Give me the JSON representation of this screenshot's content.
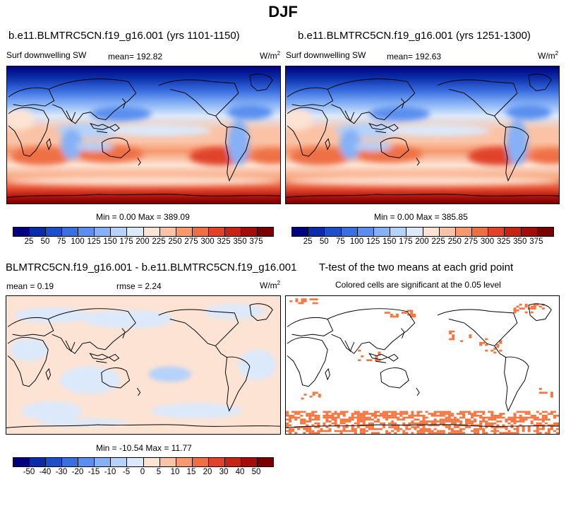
{
  "suptitle": "DJF",
  "panel_a": {
    "title": "b.e11.BLMTRC5CN.f19_g16.001 (yrs 1101-1150)",
    "left_label": "Surf downwelling SW",
    "mean_label": "mean= 192.82",
    "unit_base": "W/m",
    "unit_sup": "2",
    "minmax": "Min =   0.00 Max = 389.09"
  },
  "panel_b": {
    "title": "b.e11.BLMTRC5CN.f19_g16.001 (yrs 1251-1300)",
    "left_label": "Surf downwelling SW",
    "mean_label": "mean= 192.63",
    "unit_base": "W/m",
    "unit_sup": "2",
    "minmax": "Min =   0.00 Max = 385.85"
  },
  "panel_c": {
    "title": "BLMTRC5CN.f19_g16.001 - b.e11.BLMTRC5CN.f19_g16.001",
    "mean_label": "mean =   0.19",
    "rmse_label": "rmse =   2.24",
    "unit_base": "W/m",
    "unit_sup": "2",
    "minmax": "Min = -10.54 Max =  11.77"
  },
  "panel_d": {
    "title": "T-test of the two means at each grid point",
    "subtitle": "Colored cells are significant at the 0.05 level"
  },
  "colorbar_main": {
    "colors": [
      "#00007f",
      "#0b2ca8",
      "#1f4fc8",
      "#3a6fe0",
      "#5a8ff0",
      "#86b1f6",
      "#b4d2fa",
      "#dbe9fb",
      "#fde3d3",
      "#fbc3a6",
      "#f6996f",
      "#ef6f45",
      "#e0432a",
      "#c62415",
      "#a20d0b",
      "#7a0000"
    ],
    "ticks": [
      "25",
      "50",
      "75",
      "100",
      "125",
      "150",
      "175",
      "200",
      "225",
      "250",
      "275",
      "300",
      "325",
      "350",
      "375"
    ]
  },
  "colorbar_diff": {
    "colors": [
      "#00007f",
      "#0b2ca8",
      "#1f4fc8",
      "#3a6fe0",
      "#5a8ff0",
      "#86b1f6",
      "#b4d2fa",
      "#dbe9fb",
      "#fde3d3",
      "#fbc3a6",
      "#f6996f",
      "#ef6f45",
      "#e0432a",
      "#c62415",
      "#a20d0b",
      "#7a0000"
    ],
    "ticks": [
      "-50",
      "-40",
      "-30",
      "-20",
      "-15",
      "-10",
      "-5",
      "0",
      "5",
      "10",
      "15",
      "20",
      "30",
      "40",
      "50"
    ]
  },
  "chart_data": [
    {
      "type": "heatmap",
      "title": "b.e11.BLMTRC5CN.f19_g16.001 (yrs 1101-1150)",
      "variable": "Surf downwelling SW",
      "units": "W/m2",
      "mean": 192.82,
      "min": 0.0,
      "max": 389.09,
      "contour_levels": [
        25,
        50,
        75,
        100,
        125,
        150,
        175,
        200,
        225,
        250,
        275,
        300,
        325,
        350,
        375
      ]
    },
    {
      "type": "heatmap",
      "title": "b.e11.BLMTRC5CN.f19_g16.001 (yrs 1251-1300)",
      "variable": "Surf downwelling SW",
      "units": "W/m2",
      "mean": 192.63,
      "min": 0.0,
      "max": 385.85,
      "contour_levels": [
        25,
        50,
        75,
        100,
        125,
        150,
        175,
        200,
        225,
        250,
        275,
        300,
        325,
        350,
        375
      ]
    },
    {
      "type": "heatmap",
      "title": "BLMTRC5CN.f19_g16.001 - b.e11.BLMTRC5CN.f19_g16.001",
      "units": "W/m2",
      "mean": 0.19,
      "rmse": 2.24,
      "min": -10.54,
      "max": 11.77,
      "contour_levels": [
        -50,
        -40,
        -30,
        -20,
        -15,
        -10,
        -5,
        0,
        5,
        10,
        15,
        20,
        30,
        40,
        50
      ]
    },
    {
      "type": "heatmap",
      "title": "T-test of the two means at each grid point",
      "subtitle": "Colored cells are significant at the 0.05 level",
      "significance_level": 0.05
    }
  ]
}
